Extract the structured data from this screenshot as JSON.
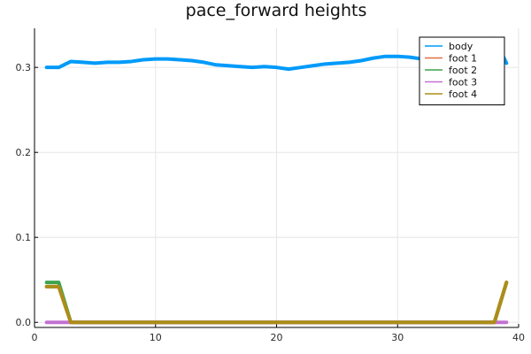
{
  "chart_data": {
    "type": "line",
    "title": "pace_forward heights",
    "xlabel": "",
    "ylabel": "",
    "xlim": [
      0,
      40
    ],
    "ylim": [
      -0.006,
      0.346
    ],
    "x_ticks": [
      0,
      10,
      20,
      30,
      40
    ],
    "y_ticks": [
      0.0,
      0.1,
      0.2,
      0.3
    ],
    "x_tick_labels": [
      "0",
      "10",
      "20",
      "30",
      "40"
    ],
    "y_tick_labels": [
      "0.0",
      "0.1",
      "0.2",
      "0.3"
    ],
    "grid": true,
    "legend_position": "top-right",
    "x": [
      1,
      2,
      3,
      4,
      5,
      6,
      7,
      8,
      9,
      10,
      11,
      12,
      13,
      14,
      15,
      16,
      17,
      18,
      19,
      20,
      21,
      22,
      23,
      24,
      25,
      26,
      27,
      28,
      29,
      30,
      31,
      32,
      33,
      34,
      35,
      36,
      37,
      38,
      39
    ],
    "series": [
      {
        "name": "body",
        "color": "#009AFA",
        "values": [
          0.3,
          0.3,
          0.307,
          0.306,
          0.305,
          0.306,
          0.306,
          0.307,
          0.309,
          0.31,
          0.31,
          0.309,
          0.308,
          0.306,
          0.303,
          0.302,
          0.301,
          0.3,
          0.301,
          0.3,
          0.298,
          0.3,
          0.302,
          0.304,
          0.305,
          0.306,
          0.308,
          0.311,
          0.313,
          0.313,
          0.312,
          0.31,
          0.308,
          0.307,
          0.307,
          0.307,
          0.31,
          0.334,
          0.305
        ]
      },
      {
        "name": "foot 1",
        "color": "#E26F46",
        "values": [
          0.042,
          0.042,
          0,
          0,
          0,
          0,
          0,
          0,
          0,
          0,
          0,
          0,
          0,
          0,
          0,
          0,
          0,
          0,
          0,
          0,
          0,
          0,
          0,
          0,
          0,
          0,
          0,
          0,
          0,
          0,
          0,
          0,
          0,
          0,
          0,
          0,
          0,
          0,
          0.047
        ]
      },
      {
        "name": "foot 2",
        "color": "#3DA44D",
        "values": [
          0.047,
          0.047,
          0,
          0,
          0,
          0,
          0,
          0,
          0,
          0,
          0,
          0,
          0,
          0,
          0,
          0,
          0,
          0,
          0,
          0,
          0,
          0,
          0,
          0,
          0,
          0,
          0,
          0,
          0,
          0,
          0,
          0,
          0,
          0,
          0,
          0,
          0,
          0,
          0.047
        ]
      },
      {
        "name": "foot 3",
        "color": "#C271D2",
        "values": [
          0,
          0,
          0,
          0,
          0,
          0,
          0,
          0,
          0,
          0,
          0,
          0,
          0,
          0,
          0,
          0,
          0,
          0,
          0,
          0,
          0,
          0,
          0,
          0,
          0,
          0,
          0,
          0,
          0,
          0,
          0,
          0,
          0,
          0,
          0,
          0,
          0,
          0,
          0
        ]
      },
      {
        "name": "foot 4",
        "color": "#AC8D18",
        "values": [
          0.042,
          0.042,
          0,
          0,
          0,
          0,
          0,
          0,
          0,
          0,
          0,
          0,
          0,
          0,
          0,
          0,
          0,
          0,
          0,
          0,
          0,
          0,
          0,
          0,
          0,
          0,
          0,
          0,
          0,
          0,
          0,
          0,
          0,
          0,
          0,
          0,
          0,
          0,
          0.047
        ]
      }
    ]
  }
}
